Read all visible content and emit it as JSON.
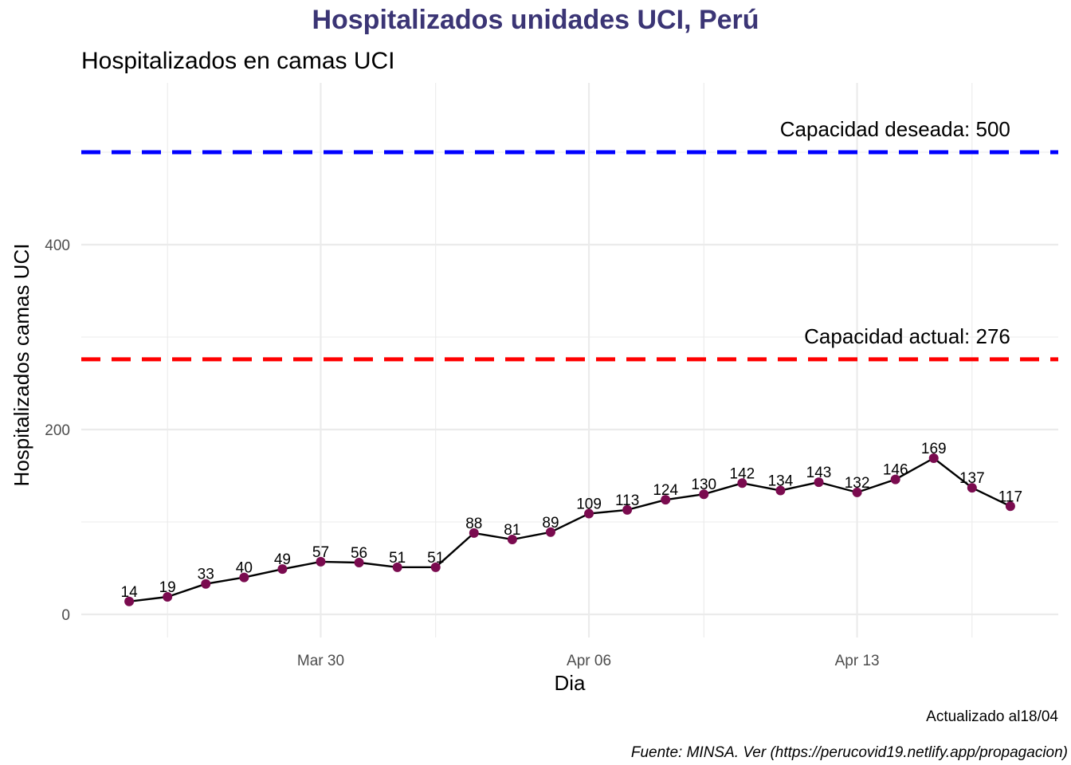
{
  "chart_data": {
    "type": "line",
    "title": "Hospitalizados unidades UCI, Perú",
    "subtitle": "Hospitalizados en camas UCI",
    "xlabel": "Dia",
    "ylabel": "Hospitalizados camas UCI",
    "caption_updated": "Actualizado al18/04",
    "caption_source": "Fuente: MINSA. Ver (https://perucovid19.netlify.app/propagacion)",
    "x": [
      "2020-03-25",
      "2020-03-26",
      "2020-03-27",
      "2020-03-28",
      "2020-03-29",
      "2020-03-30",
      "2020-03-31",
      "2020-04-01",
      "2020-04-02",
      "2020-04-03",
      "2020-04-04",
      "2020-04-05",
      "2020-04-06",
      "2020-04-07",
      "2020-04-08",
      "2020-04-09",
      "2020-04-10",
      "2020-04-11",
      "2020-04-12",
      "2020-04-13",
      "2020-04-14",
      "2020-04-15",
      "2020-04-16",
      "2020-04-17"
    ],
    "series": [
      {
        "values": [
          14,
          19,
          33,
          40,
          49,
          57,
          56,
          51,
          51,
          88,
          81,
          89,
          109,
          113,
          124,
          130,
          142,
          134,
          143,
          132,
          146,
          169,
          137,
          117
        ],
        "labels": [
          "14",
          "19",
          "33",
          "40",
          "49",
          "57",
          "56",
          "51",
          "51",
          "88",
          "81",
          "89",
          "109",
          "113",
          "124",
          "130",
          "142",
          "134",
          "143",
          "132",
          "146",
          "169",
          "137",
          "117"
        ],
        "line_color": "#000000",
        "point_color": "#7a0b4f"
      }
    ],
    "reference_lines": [
      {
        "value": 500,
        "label": "Capacidad deseada: 500",
        "color": "#0000ff",
        "style": "dashed"
      },
      {
        "value": 276,
        "label": "Capacidad actual: 276",
        "color": "#ff0000",
        "style": "dashed"
      }
    ],
    "x_ticks": [
      {
        "date": "2020-03-30",
        "label": "Mar 30"
      },
      {
        "date": "2020-04-06",
        "label": "Apr 06"
      },
      {
        "date": "2020-04-13",
        "label": "Apr 13"
      }
    ],
    "x_minor_ticks": [
      "2020-03-26",
      "2020-04-02",
      "2020-04-09",
      "2020-04-16"
    ],
    "y_ticks": [
      {
        "value": 0,
        "label": "0"
      },
      {
        "value": 200,
        "label": "200"
      },
      {
        "value": 400,
        "label": "400"
      }
    ],
    "y_minor_ticks": [
      100,
      300,
      500
    ],
    "xlim": [
      "2020-03-23 18:00",
      "2020-04-18 06:00"
    ],
    "ylim": [
      -25,
      575
    ],
    "grid": true,
    "theme": "minimal",
    "title_color": "#3b3575",
    "grid_color": "#ebebeb"
  }
}
